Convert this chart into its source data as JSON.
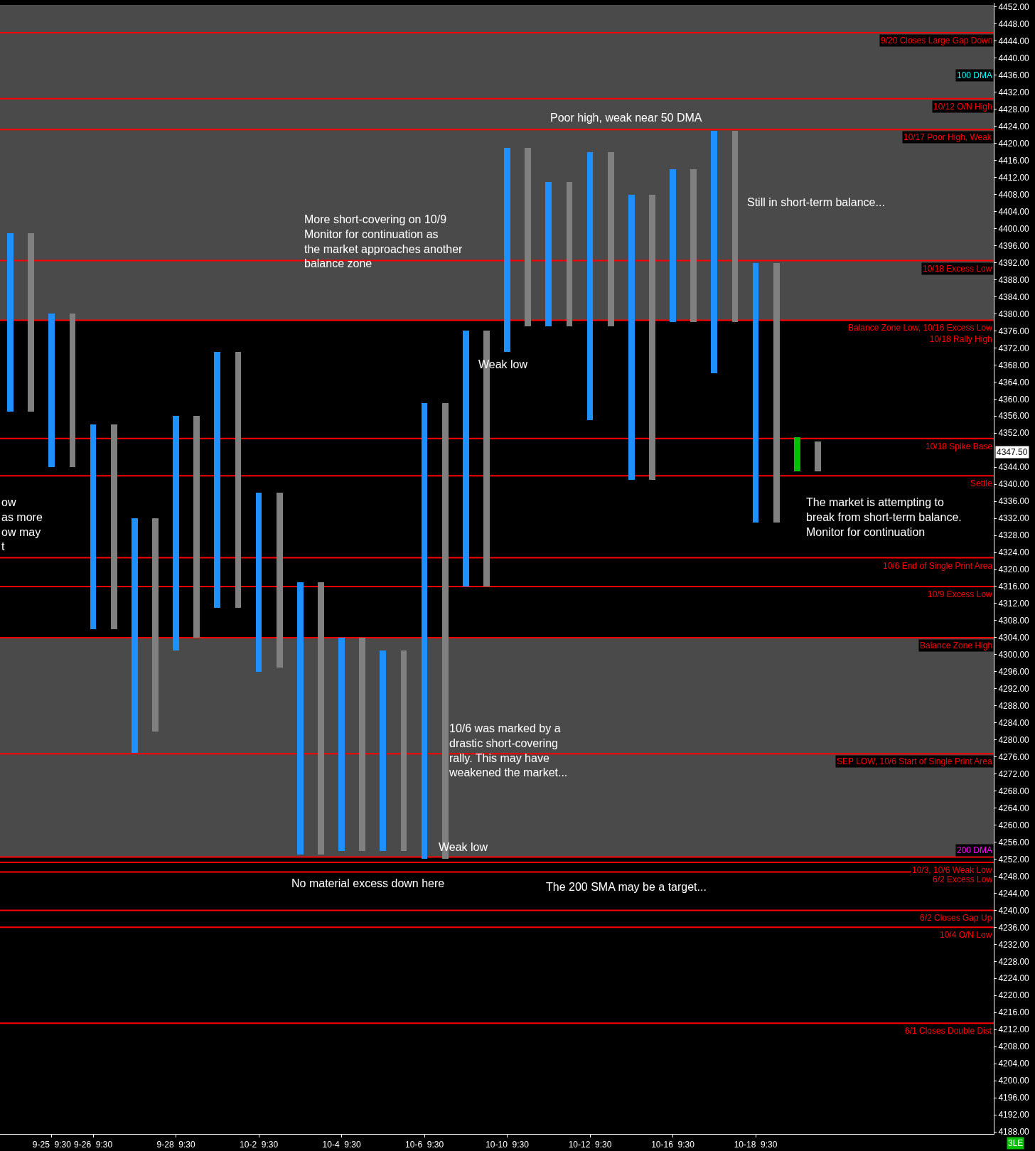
{
  "chart_data": {
    "type": "bar",
    "title": null,
    "categories": [
      null,
      null,
      "9-25  9:30",
      null,
      "9-26  9:30",
      null,
      null,
      null,
      "9-28  9:30",
      null,
      null,
      null,
      "10-2  9:30",
      null,
      null,
      null,
      "10-4  9:30",
      null,
      null,
      null,
      "10-6  9:30",
      null,
      null,
      null,
      "10-10  9:30",
      null,
      null,
      null,
      "10-12  9:30",
      null,
      null,
      null,
      "10-16  9:30",
      null,
      null,
      null,
      "10-18  9:30",
      null,
      null,
      null,
      null,
      null,
      null,
      null,
      null,
      null,
      null,
      null
    ],
    "base": [
      4357,
      4357,
      4344,
      4344,
      4306,
      4306,
      4277,
      4282,
      4301,
      4304,
      4311,
      4311,
      4296,
      4297,
      4253,
      4253,
      4254,
      4254,
      4254,
      4254,
      4252,
      4252,
      4316,
      4316,
      4371,
      4377,
      4377,
      4377,
      4355,
      4377,
      4341,
      4341,
      4378,
      4378,
      4366,
      4378,
      4331,
      4331,
      4343,
      4343,
      null,
      null,
      null,
      null,
      null,
      null,
      null,
      null
    ],
    "values": [
      42,
      42,
      36,
      36,
      48,
      48,
      55,
      50,
      55,
      52,
      60,
      60,
      42,
      41,
      64,
      64,
      50,
      50,
      47,
      47,
      107,
      107,
      60,
      60,
      48,
      42,
      34,
      34,
      63,
      41,
      67,
      67,
      36,
      36,
      57,
      45,
      61,
      61,
      8,
      7,
      null,
      null,
      null,
      null,
      null,
      null,
      null,
      null
    ],
    "colors": [
      "#1e90ff",
      "#808080",
      "#1e90ff",
      "#808080",
      "#1e90ff",
      "#808080",
      "#1e90ff",
      "#808080",
      "#1e90ff",
      "#808080",
      "#1e90ff",
      "#808080",
      "#1e90ff",
      "#808080",
      "#1e90ff",
      "#808080",
      "#1e90ff",
      "#808080",
      "#1e90ff",
      "#808080",
      "#1e90ff",
      "#808080",
      "#1e90ff",
      "#808080",
      "#1e90ff",
      "#808080",
      "#1e90ff",
      "#808080",
      "#1e90ff",
      "#808080",
      "#1e90ff",
      "#808080",
      "#1e90ff",
      "#808080",
      "#1e90ff",
      "#808080",
      "#1e90ff",
      "#808080",
      "#00c000",
      "#808080",
      null,
      null,
      null,
      null,
      null,
      null,
      null,
      null
    ],
    "ylim": [
      4187.5,
      4453
    ],
    "yticks": [
      {
        "value": 4188,
        "label": "4188.00"
      },
      {
        "value": 4192,
        "label": "4192.00"
      },
      {
        "value": 4196,
        "label": "4196.00"
      },
      {
        "value": 4200,
        "label": "4200.00"
      },
      {
        "value": 4204,
        "label": "4204.00"
      },
      {
        "value": 4208,
        "label": "4208.00"
      },
      {
        "value": 4212,
        "label": "4212.00"
      },
      {
        "value": 4216,
        "label": "4216.00"
      },
      {
        "value": 4220,
        "label": "4220.00"
      },
      {
        "value": 4224,
        "label": "4224.00"
      },
      {
        "value": 4228,
        "label": "4228.00"
      },
      {
        "value": 4232,
        "label": "4232.00"
      },
      {
        "value": 4236,
        "label": "4236.00"
      },
      {
        "value": 4240,
        "label": "4240.00"
      },
      {
        "value": 4244,
        "label": "4244.00"
      },
      {
        "value": 4248,
        "label": "4248.00"
      },
      {
        "value": 4252,
        "label": "4252.00"
      },
      {
        "value": 4256,
        "label": "4256.00"
      },
      {
        "value": 4260,
        "label": "4260.00"
      },
      {
        "value": 4264,
        "label": "4264.00"
      },
      {
        "value": 4268,
        "label": "4268.00"
      },
      {
        "value": 4272,
        "label": "4272.00"
      },
      {
        "value": 4276,
        "label": "4276.00"
      },
      {
        "value": 4280,
        "label": "4280.00"
      },
      {
        "value": 4284,
        "label": "4284.00"
      },
      {
        "value": 4288,
        "label": "4288.00"
      },
      {
        "value": 4292,
        "label": "4292.00"
      },
      {
        "value": 4296,
        "label": "4296.00"
      },
      {
        "value": 4300,
        "label": "4300.00"
      },
      {
        "value": 4304,
        "label": "4304.00"
      },
      {
        "value": 4308,
        "label": "4308.00"
      },
      {
        "value": 4312,
        "label": "4312.00"
      },
      {
        "value": 4316,
        "label": "4316.00"
      },
      {
        "value": 4320,
        "label": "4320.00"
      },
      {
        "value": 4324,
        "label": "4324.00"
      },
      {
        "value": 4328,
        "label": "4328.00"
      },
      {
        "value": 4332,
        "label": "4332.00"
      },
      {
        "value": 4336,
        "label": "4336.00"
      },
      {
        "value": 4340,
        "label": "4340.00"
      },
      {
        "value": 4344,
        "label": "4344.00"
      },
      {
        "value": 4352,
        "label": "4352.00"
      },
      {
        "value": 4356,
        "label": "4356.00"
      },
      {
        "value": 4360,
        "label": "4360.00"
      },
      {
        "value": 4364,
        "label": "4364.00"
      },
      {
        "value": 4368,
        "label": "4368.00"
      },
      {
        "value": 4372,
        "label": "4372.00"
      },
      {
        "value": 4376,
        "label": "4376.00"
      },
      {
        "value": 4380,
        "label": "4380.00"
      },
      {
        "value": 4384,
        "label": "4384.00"
      },
      {
        "value": 4388,
        "label": "4388.00"
      },
      {
        "value": 4392,
        "label": "4392.00"
      },
      {
        "value": 4396,
        "label": "4396.00"
      },
      {
        "value": 4400,
        "label": "4400.00"
      },
      {
        "value": 4404,
        "label": "4404.00"
      },
      {
        "value": 4408,
        "label": "4408.00"
      },
      {
        "value": 4412,
        "label": "4412.00"
      },
      {
        "value": 4416,
        "label": "4416.00"
      },
      {
        "value": 4420,
        "label": "4420.00"
      },
      {
        "value": 4424,
        "label": "4424.00"
      },
      {
        "value": 4428,
        "label": "4428.00"
      },
      {
        "value": 4432,
        "label": "4432.00"
      },
      {
        "value": 4436,
        "label": "4436.00"
      },
      {
        "value": 4440,
        "label": "4440.00"
      },
      {
        "value": 4444,
        "label": "4444.00"
      },
      {
        "value": 4448,
        "label": "4448.00"
      },
      {
        "value": 4452,
        "label": "4452.00"
      }
    ],
    "bands": [
      {
        "axis": "y",
        "from": 4378.5,
        "to": 4452.5,
        "color": "#4a4a4a"
      },
      {
        "axis": "y",
        "from": 4252.5,
        "to": 4304,
        "color": "#4a4a4a"
      }
    ],
    "ref_lines": [
      {
        "axis": "y",
        "value": 4446,
        "label": "9/20 Closes Large Gap Down",
        "color": "#ff0000"
      },
      {
        "axis": "y",
        "value": 4430.5,
        "label": "10/12 O/N High",
        "color": "#ff0000"
      },
      {
        "axis": "y",
        "value": 4423.25,
        "label": "10/17 Poor High, Weak",
        "color": "#ff0000"
      },
      {
        "axis": "y",
        "value": 4392.5,
        "label": "10/18 Excess Low",
        "color": "#ff0000"
      },
      {
        "axis": "y",
        "value": 4378.5,
        "label": "Balance Zone Low, 10/16 Excess Low\n10/18 Rally High",
        "color": "#ff0000"
      },
      {
        "axis": "y",
        "value": 4350.75,
        "label": "10/18 Spike Base",
        "color": "#ff0000"
      },
      {
        "axis": "y",
        "value": 4342,
        "label": "Settle",
        "color": "#ff0000"
      },
      {
        "axis": "y",
        "value": 4322.75,
        "label": "10/6 End of Single Print Area",
        "color": "#ff0000"
      },
      {
        "axis": "y",
        "value": 4316,
        "label": "10/9 Excess Low",
        "color": "#ff0000"
      },
      {
        "axis": "y",
        "value": 4304,
        "label": "Balance Zone High",
        "color": "#ff0000"
      },
      {
        "axis": "y",
        "value": 4276.75,
        "label": "SEP LOW, 10/6 Start of Single Print Area",
        "color": "#ff0000"
      },
      {
        "axis": "y",
        "value": 4252.5,
        "label": null,
        "color": "#ff0000"
      },
      {
        "axis": "y",
        "value": 4251.25,
        "label": "10/3, 10/6 Weak Low",
        "color": "#ff0000"
      },
      {
        "axis": "y",
        "value": 4249,
        "label": "6/2 Excess Low",
        "color": "#ff0000"
      },
      {
        "axis": "y",
        "value": 4240,
        "label": "6/2 Closes Gap Up",
        "color": "#ff0000"
      },
      {
        "axis": "y",
        "value": 4236,
        "label": "10/4 O/N Low",
        "color": "#ff0000"
      },
      {
        "axis": "y",
        "value": 4213.5,
        "label": "6/1 Closes Double Dist",
        "color": "#ff0000"
      }
    ],
    "annotations": [
      "Poor high, weak near 50 DMA",
      "Still in short-term balance...",
      "More short-covering on 10/9\nMonitor for continuation as\nthe market approaches another\nbalance zone",
      "Weak low",
      "ow\nas more\now may\nt",
      "The market is attempting to\nbreak from short-term balance.\nMonitor for continuation",
      "10/6 was marked by a\ndrastic short-covering\nrally. This may have\nweakened the market...",
      "Weak low",
      "No material excess down here",
      "The 200 SMA may be a target...",
      "100 DMA",
      "200 DMA",
      "4347.50",
      "3LE"
    ],
    "grid": false
  }
}
